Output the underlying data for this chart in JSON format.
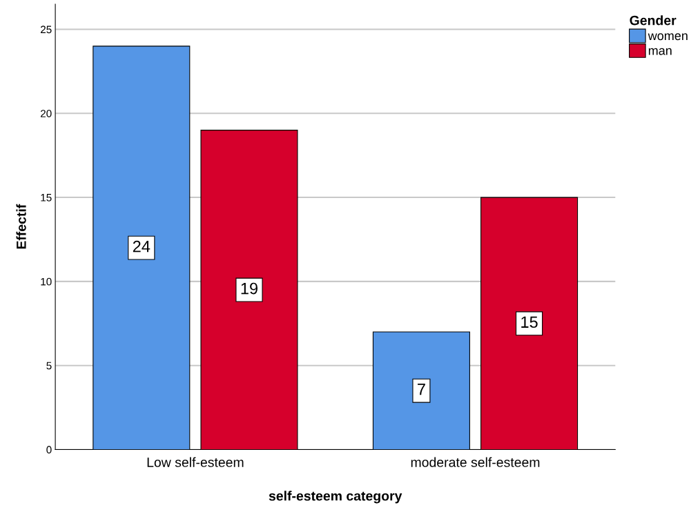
{
  "chart_data": {
    "type": "bar",
    "xlabel": "self-esteem category",
    "ylabel": "Effectif",
    "legend_title": "Gender",
    "categories": [
      "Low self-esteem",
      "moderate self-esteem"
    ],
    "series": [
      {
        "name": "women",
        "color": "#5596e6",
        "values": [
          24,
          7
        ]
      },
      {
        "name": "man",
        "color": "#d6002c",
        "values": [
          19,
          15
        ]
      }
    ],
    "ylim": [
      0,
      26.5
    ],
    "yticks": [
      0,
      5,
      10,
      15,
      20,
      25
    ],
    "grid": "y",
    "legend": "top right",
    "data_labels": true
  }
}
